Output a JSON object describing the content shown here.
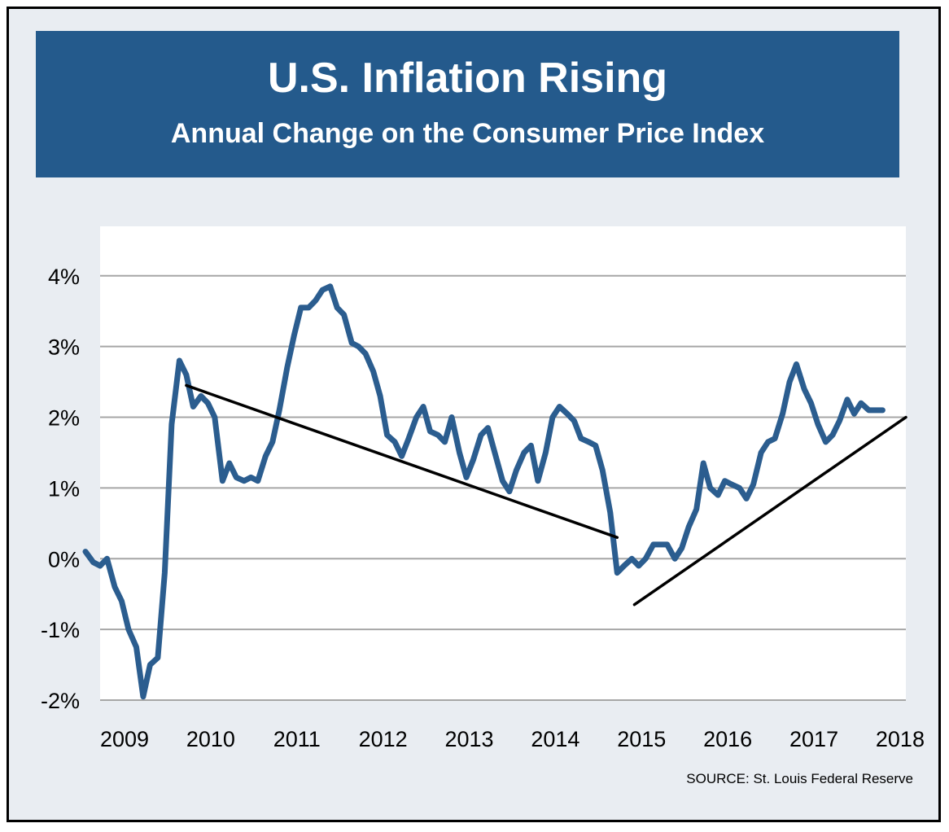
{
  "header": {
    "title": "U.S. Inflation Rising",
    "subtitle": "Annual Change on the Consumer Price Index"
  },
  "source": "SOURCE: St. Louis Federal Reserve",
  "colors": {
    "frame_background": "#e9edf2",
    "banner": "#245a8c",
    "series_line": "#2b5d8f",
    "grid": "#a6a6a6",
    "trend": "#000000"
  },
  "chart_data": {
    "type": "line",
    "title": "U.S. Inflation Rising",
    "subtitle": "Annual Change on the Consumer Price Index",
    "xlim": [
      2009.0,
      2018.35
    ],
    "ylim": [
      -2,
      4.7
    ],
    "x_ticks": [
      {
        "value": 2009.0,
        "label": "2009"
      },
      {
        "value": 2010.0,
        "label": "2010"
      },
      {
        "value": 2011.0,
        "label": "2011"
      },
      {
        "value": 2012.0,
        "label": "2012"
      },
      {
        "value": 2013.0,
        "label": "2013"
      },
      {
        "value": 2014.0,
        "label": "2014"
      },
      {
        "value": 2015.0,
        "label": "2015"
      },
      {
        "value": 2016.0,
        "label": "2016"
      },
      {
        "value": 2017.0,
        "label": "2017"
      },
      {
        "value": 2018.0,
        "label": "2018"
      }
    ],
    "y_ticks": [
      {
        "value": 4,
        "label": "4%"
      },
      {
        "value": 3,
        "label": "3%"
      },
      {
        "value": 2,
        "label": "2%"
      },
      {
        "value": 1,
        "label": "1%"
      },
      {
        "value": 0,
        "label": "0%"
      },
      {
        "value": -1,
        "label": "-1%"
      },
      {
        "value": -2,
        "label": "-2%"
      }
    ],
    "grid": "horizontal",
    "series": [
      {
        "points": [
          [
            2008.83,
            0.1
          ],
          [
            2008.92,
            -0.05
          ],
          [
            2009.0,
            -0.1
          ],
          [
            2009.08,
            0.0
          ],
          [
            2009.17,
            -0.4
          ],
          [
            2009.25,
            -0.6
          ],
          [
            2009.33,
            -1.0
          ],
          [
            2009.42,
            -1.25
          ],
          [
            2009.5,
            -1.95
          ],
          [
            2009.58,
            -1.5
          ],
          [
            2009.67,
            -1.4
          ],
          [
            2009.75,
            -0.2
          ],
          [
            2009.83,
            1.9
          ],
          [
            2009.92,
            2.8
          ],
          [
            2010.0,
            2.6
          ],
          [
            2010.08,
            2.15
          ],
          [
            2010.17,
            2.3
          ],
          [
            2010.25,
            2.2
          ],
          [
            2010.33,
            2.0
          ],
          [
            2010.42,
            1.1
          ],
          [
            2010.5,
            1.35
          ],
          [
            2010.58,
            1.15
          ],
          [
            2010.67,
            1.1
          ],
          [
            2010.75,
            1.15
          ],
          [
            2010.83,
            1.1
          ],
          [
            2010.92,
            1.45
          ],
          [
            2011.0,
            1.65
          ],
          [
            2011.08,
            2.1
          ],
          [
            2011.17,
            2.7
          ],
          [
            2011.25,
            3.15
          ],
          [
            2011.33,
            3.55
          ],
          [
            2011.42,
            3.55
          ],
          [
            2011.5,
            3.65
          ],
          [
            2011.58,
            3.8
          ],
          [
            2011.67,
            3.85
          ],
          [
            2011.75,
            3.55
          ],
          [
            2011.83,
            3.45
          ],
          [
            2011.92,
            3.05
          ],
          [
            2012.0,
            3.0
          ],
          [
            2012.08,
            2.9
          ],
          [
            2012.17,
            2.65
          ],
          [
            2012.25,
            2.3
          ],
          [
            2012.33,
            1.75
          ],
          [
            2012.42,
            1.65
          ],
          [
            2012.5,
            1.45
          ],
          [
            2012.58,
            1.7
          ],
          [
            2012.67,
            2.0
          ],
          [
            2012.75,
            2.15
          ],
          [
            2012.83,
            1.8
          ],
          [
            2012.92,
            1.75
          ],
          [
            2013.0,
            1.65
          ],
          [
            2013.08,
            2.0
          ],
          [
            2013.17,
            1.5
          ],
          [
            2013.25,
            1.15
          ],
          [
            2013.33,
            1.4
          ],
          [
            2013.42,
            1.75
          ],
          [
            2013.5,
            1.85
          ],
          [
            2013.58,
            1.5
          ],
          [
            2013.67,
            1.1
          ],
          [
            2013.75,
            0.95
          ],
          [
            2013.83,
            1.25
          ],
          [
            2013.92,
            1.5
          ],
          [
            2014.0,
            1.6
          ],
          [
            2014.08,
            1.1
          ],
          [
            2014.17,
            1.5
          ],
          [
            2014.25,
            2.0
          ],
          [
            2014.33,
            2.15
          ],
          [
            2014.42,
            2.05
          ],
          [
            2014.5,
            1.95
          ],
          [
            2014.58,
            1.7
          ],
          [
            2014.67,
            1.65
          ],
          [
            2014.75,
            1.6
          ],
          [
            2014.83,
            1.25
          ],
          [
            2014.92,
            0.65
          ],
          [
            2015.0,
            -0.2
          ],
          [
            2015.08,
            -0.1
          ],
          [
            2015.17,
            0.0
          ],
          [
            2015.25,
            -0.1
          ],
          [
            2015.33,
            0.0
          ],
          [
            2015.42,
            0.2
          ],
          [
            2015.5,
            0.2
          ],
          [
            2015.58,
            0.2
          ],
          [
            2015.67,
            0.0
          ],
          [
            2015.75,
            0.15
          ],
          [
            2015.83,
            0.45
          ],
          [
            2015.92,
            0.7
          ],
          [
            2016.0,
            1.35
          ],
          [
            2016.08,
            1.0
          ],
          [
            2016.17,
            0.9
          ],
          [
            2016.25,
            1.1
          ],
          [
            2016.33,
            1.05
          ],
          [
            2016.42,
            1.0
          ],
          [
            2016.5,
            0.85
          ],
          [
            2016.58,
            1.05
          ],
          [
            2016.67,
            1.5
          ],
          [
            2016.75,
            1.65
          ],
          [
            2016.83,
            1.7
          ],
          [
            2016.92,
            2.05
          ],
          [
            2017.0,
            2.5
          ],
          [
            2017.08,
            2.75
          ],
          [
            2017.17,
            2.4
          ],
          [
            2017.25,
            2.2
          ],
          [
            2017.33,
            1.9
          ],
          [
            2017.42,
            1.65
          ],
          [
            2017.5,
            1.75
          ],
          [
            2017.58,
            1.95
          ],
          [
            2017.67,
            2.25
          ],
          [
            2017.75,
            2.05
          ],
          [
            2017.83,
            2.2
          ],
          [
            2017.92,
            2.1
          ],
          [
            2018.0,
            2.1
          ],
          [
            2018.08,
            2.1
          ]
        ]
      }
    ],
    "annotations": [
      {
        "type": "trend-line",
        "from": [
          2010.0,
          2.45
        ],
        "to": [
          2015.0,
          0.3
        ]
      },
      {
        "type": "trend-line",
        "from": [
          2015.2,
          -0.65
        ],
        "to": [
          2018.35,
          2.0
        ]
      }
    ]
  }
}
